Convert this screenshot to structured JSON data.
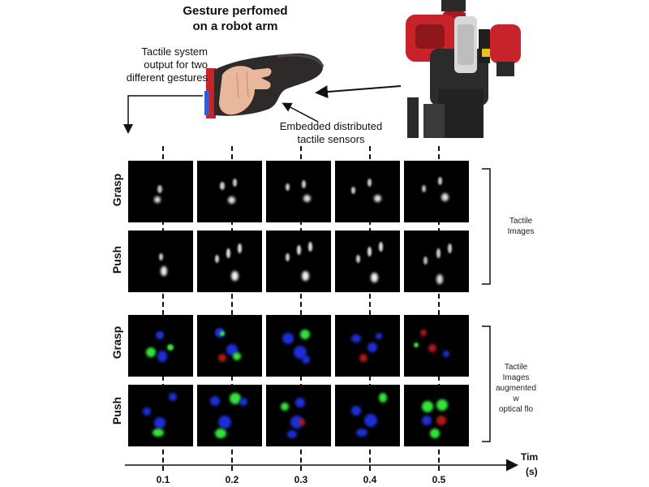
{
  "title": "Gesture perfomed\non a robot arm",
  "captions": {
    "tactile_output": "Tactile system\noutput for two\ndifferent gestures",
    "embedded": "Embedded distributed\ntactile sensors"
  },
  "rows": {
    "grasp1": "Grasp",
    "push1": "Push",
    "grasp2": "Grasp",
    "push2": "Push"
  },
  "brackets": {
    "tactile_images": "Tactile\nImages",
    "augmented": "Tactile\nImages\naugmented w\noptical flo"
  },
  "axis": {
    "label_top": "Tim",
    "label_bottom": "(s)",
    "ticks": [
      "0.1",
      "0.2",
      "0.3",
      "0.4",
      "0.5"
    ]
  },
  "colors": {
    "robot_red": "#c8232a",
    "flow_blue": "#1c2fd6",
    "flow_green": "#35e33a",
    "flow_red": "#b01818"
  }
}
